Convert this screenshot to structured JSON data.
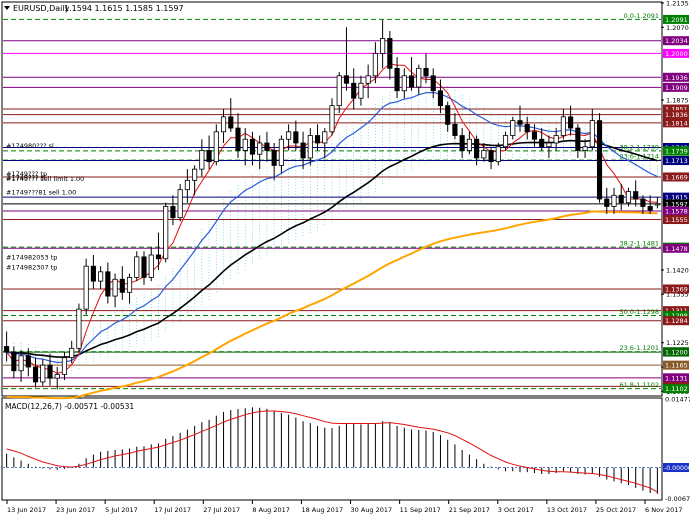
{
  "chart_data": [
    {
      "type": "candlestick",
      "symbol": "EURUSD",
      "timeframe": "Daily",
      "title": "EURUSD,Daily",
      "ohlc_header": [
        "1.1594",
        "1.1615",
        "1.1585",
        "1.1597"
      ],
      "ylim": [
        1.1085,
        1.2135
      ],
      "y_ticks": [
        "1.2135",
        "1.2070",
        "1.1875",
        "1.1420",
        "1.1355",
        "1.1225",
        "1.1160",
        "1.1095"
      ],
      "x_tick_labels": [
        "13 Jun 2017",
        "23 Jun 2017",
        "5 Jul 2017",
        "17 Jul 2017",
        "27 Jul 2017",
        "8 Aug 2017",
        "18 Aug 2017",
        "30 Aug 2017",
        "11 Sep 2017",
        "21 Sep 2017",
        "3 Oct 2017",
        "13 Oct 2017",
        "25 Oct 2017",
        "6 Nov 2017"
      ],
      "candles": [
        [
          1.1215,
          1.1255,
          1.1175,
          1.12
        ],
        [
          1.12,
          1.1215,
          1.113,
          1.115
        ],
        [
          1.115,
          1.1205,
          1.112,
          1.119
        ],
        [
          1.119,
          1.121,
          1.1135,
          1.116
        ],
        [
          1.116,
          1.1185,
          1.1105,
          1.112
        ],
        [
          1.112,
          1.118,
          1.111,
          1.1165
        ],
        [
          1.1165,
          1.1195,
          1.111,
          1.113
        ],
        [
          1.113,
          1.116,
          1.11,
          1.114
        ],
        [
          1.114,
          1.12,
          1.1125,
          1.1185
        ],
        [
          1.1185,
          1.123,
          1.117,
          1.121
        ],
        [
          1.121,
          1.133,
          1.12,
          1.1315
        ],
        [
          1.1315,
          1.145,
          1.13,
          1.143
        ],
        [
          1.143,
          1.146,
          1.137,
          1.139
        ],
        [
          1.139,
          1.143,
          1.137,
          1.1415
        ],
        [
          1.1415,
          1.144,
          1.133,
          1.135
        ],
        [
          1.135,
          1.141,
          1.132,
          1.1395
        ],
        [
          1.1395,
          1.143,
          1.134,
          1.136
        ],
        [
          1.136,
          1.141,
          1.133,
          1.14
        ],
        [
          1.14,
          1.147,
          1.139,
          1.1455
        ],
        [
          1.1455,
          1.147,
          1.138,
          1.14
        ],
        [
          1.14,
          1.148,
          1.139,
          1.146
        ],
        [
          1.146,
          1.152,
          1.142,
          1.145
        ],
        [
          1.145,
          1.16,
          1.144,
          1.159
        ],
        [
          1.159,
          1.162,
          1.154,
          1.156
        ],
        [
          1.156,
          1.165,
          1.155,
          1.1635
        ],
        [
          1.1635,
          1.169,
          1.16,
          1.166
        ],
        [
          1.166,
          1.17,
          1.162,
          1.169
        ],
        [
          1.169,
          1.177,
          1.167,
          1.174
        ],
        [
          1.174,
          1.178,
          1.169,
          1.171
        ],
        [
          1.171,
          1.181,
          1.17,
          1.179
        ],
        [
          1.179,
          1.185,
          1.176,
          1.183
        ],
        [
          1.183,
          1.188,
          1.179,
          1.18
        ],
        [
          1.18,
          1.184,
          1.172,
          1.174
        ],
        [
          1.174,
          1.18,
          1.17,
          1.177
        ],
        [
          1.177,
          1.179,
          1.17,
          1.173
        ],
        [
          1.173,
          1.178,
          1.169,
          1.176
        ],
        [
          1.176,
          1.179,
          1.171,
          1.174
        ],
        [
          1.174,
          1.176,
          1.166,
          1.17
        ],
        [
          1.17,
          1.178,
          1.168,
          1.177
        ],
        [
          1.177,
          1.181,
          1.174,
          1.179
        ],
        [
          1.179,
          1.182,
          1.174,
          1.176
        ],
        [
          1.176,
          1.179,
          1.169,
          1.172
        ],
        [
          1.172,
          1.18,
          1.17,
          1.178
        ],
        [
          1.178,
          1.181,
          1.174,
          1.176
        ],
        [
          1.176,
          1.18,
          1.172,
          1.179
        ],
        [
          1.179,
          1.188,
          1.178,
          1.186
        ],
        [
          1.186,
          1.195,
          1.184,
          1.194
        ],
        [
          1.194,
          1.207,
          1.19,
          1.192
        ],
        [
          1.192,
          1.196,
          1.185,
          1.188
        ],
        [
          1.188,
          1.194,
          1.186,
          1.192
        ],
        [
          1.192,
          1.197,
          1.188,
          1.194
        ],
        [
          1.194,
          1.203,
          1.192,
          1.2
        ],
        [
          1.2,
          1.209,
          1.196,
          1.204
        ],
        [
          1.204,
          1.206,
          1.193,
          1.196
        ],
        [
          1.196,
          1.199,
          1.188,
          1.19
        ],
        [
          1.19,
          1.196,
          1.188,
          1.194
        ],
        [
          1.194,
          1.199,
          1.19,
          1.191
        ],
        [
          1.191,
          1.197,
          1.189,
          1.196
        ],
        [
          1.196,
          1.2,
          1.192,
          1.194
        ],
        [
          1.194,
          1.196,
          1.188,
          1.19
        ],
        [
          1.19,
          1.193,
          1.184,
          1.186
        ],
        [
          1.186,
          1.187,
          1.179,
          1.181
        ],
        [
          1.181,
          1.184,
          1.177,
          1.178
        ],
        [
          1.178,
          1.18,
          1.172,
          1.174
        ],
        [
          1.174,
          1.179,
          1.173,
          1.177
        ],
        [
          1.177,
          1.178,
          1.17,
          1.172
        ],
        [
          1.172,
          1.176,
          1.171,
          1.174
        ],
        [
          1.174,
          1.175,
          1.169,
          1.171
        ],
        [
          1.171,
          1.176,
          1.17,
          1.175
        ],
        [
          1.175,
          1.179,
          1.174,
          1.178
        ],
        [
          1.178,
          1.183,
          1.177,
          1.182
        ],
        [
          1.182,
          1.186,
          1.179,
          1.181
        ],
        [
          1.181,
          1.183,
          1.177,
          1.179
        ],
        [
          1.179,
          1.181,
          1.175,
          1.177
        ],
        [
          1.177,
          1.18,
          1.174,
          1.175
        ],
        [
          1.175,
          1.178,
          1.172,
          1.176
        ],
        [
          1.176,
          1.18,
          1.174,
          1.178
        ],
        [
          1.178,
          1.185,
          1.177,
          1.183
        ],
        [
          1.183,
          1.186,
          1.178,
          1.18
        ],
        [
          1.18,
          1.181,
          1.172,
          1.174
        ],
        [
          1.174,
          1.177,
          1.172,
          1.175
        ],
        [
          1.175,
          1.185,
          1.174,
          1.182
        ],
        [
          1.182,
          1.184,
          1.16,
          1.161
        ],
        [
          1.161,
          1.164,
          1.157,
          1.159
        ],
        [
          1.159,
          1.164,
          1.157,
          1.162
        ],
        [
          1.162,
          1.165,
          1.158,
          1.16
        ],
        [
          1.16,
          1.164,
          1.159,
          1.163
        ],
        [
          1.163,
          1.166,
          1.159,
          1.161
        ],
        [
          1.161,
          1.162,
          1.157,
          1.159
        ],
        [
          1.159,
          1.162,
          1.157,
          1.158
        ],
        [
          1.1594,
          1.1615,
          1.1585,
          1.1597
        ]
      ],
      "series_meta": [
        {
          "color": "#000000"
        },
        {
          "color": "#ffa500"
        },
        {
          "color": "#2e5bd6"
        },
        {
          "color": "#e01010"
        }
      ],
      "horizontal_levels": [
        {
          "value": "1.2091",
          "label": "0.0-1.2091",
          "color": "#008000"
        },
        {
          "value": "1.2034",
          "label": "",
          "color": "#800080"
        },
        {
          "value": "1.2000",
          "label": "",
          "color": "#ff00ff"
        },
        {
          "value": "1.1936",
          "label": "",
          "color": "#800080"
        },
        {
          "value": "1.1909",
          "label": "",
          "color": "#800080"
        },
        {
          "value": "1.1851",
          "label": "",
          "color": "#8b1a1a"
        },
        {
          "value": "1.1836",
          "label": "",
          "color": "#8b1a1a"
        },
        {
          "value": "1.1814",
          "label": "",
          "color": "#8b1a1a"
        },
        {
          "value": "1.1748",
          "label": "",
          "color": "#000080"
        },
        {
          "value": "1.1739",
          "label": "38.2-1.1739",
          "color": "#008000"
        },
        {
          "value": "1.1714",
          "label": "23.6-1.1714",
          "color": "#008000"
        },
        {
          "value": "1.1713",
          "label": "",
          "color": "#000080"
        },
        {
          "value": "1.1669",
          "label": "",
          "color": "#8b1a1a"
        },
        {
          "value": "1.1615",
          "label": "",
          "color": "#000080"
        },
        {
          "value": "1.1597",
          "label": "",
          "color": "#000000"
        },
        {
          "value": "1.1578",
          "label": "",
          "color": "#800080"
        },
        {
          "value": "1.1555",
          "label": "",
          "color": "#8b1a1a"
        },
        {
          "value": "1.1481",
          "label": "38.2-1.1481",
          "color": "#008000"
        },
        {
          "value": "1.1478",
          "label": "",
          "color": "#800080"
        },
        {
          "value": "1.1369",
          "label": "",
          "color": "#8b1a1a"
        },
        {
          "value": "1.1311",
          "label": "",
          "color": "#8b1a1a"
        },
        {
          "value": "1.1298",
          "label": "50.0-1.1298",
          "color": "#008000"
        },
        {
          "value": "1.1284",
          "label": "",
          "color": "#8b1a1a"
        },
        {
          "value": "1.1201",
          "label": "23.6-1.1201",
          "color": "#008000"
        },
        {
          "value": "1.1200",
          "label": "",
          "color": "#006400"
        },
        {
          "value": "1.1165",
          "label": "",
          "color": "#8b5a2b"
        },
        {
          "value": "1.1131",
          "label": "",
          "color": "#800080"
        },
        {
          "value": "1.1108",
          "label": "",
          "color": "#8b1a1a"
        },
        {
          "value": "1.1102",
          "label": "61.8-1.1102",
          "color": "#008000"
        }
      ],
      "order_labels": [
        "#174980??? sl",
        "#1749??? tp",
        "#1749??? sl",
        "#1749???  sell limit 1.00",
        "#1749???81 sell 1.00",
        "#174982053 tp",
        "#174982307 tp"
      ]
    },
    {
      "type": "bar",
      "title": "MACD(12,26,7) -0.00571 -0.00531",
      "ylim": [
        -0.0068,
        0.0148
      ],
      "y_ticks": [
        "0.01477",
        "-0.00000",
        "-0.00671"
      ],
      "values": [
        0.003,
        0.0022,
        0.0015,
        0.0008,
        0.0002,
        -0.0002,
        -0.0004,
        -0.0005,
        -0.0003,
        0.0,
        0.0008,
        0.002,
        0.0028,
        0.0034,
        0.0036,
        0.0038,
        0.0039,
        0.0041,
        0.0045,
        0.0046,
        0.005,
        0.0052,
        0.0062,
        0.0068,
        0.0075,
        0.0082,
        0.009,
        0.0098,
        0.0103,
        0.0112,
        0.012,
        0.0124,
        0.0126,
        0.0128,
        0.013,
        0.0129,
        0.0127,
        0.0122,
        0.0118,
        0.0114,
        0.0108,
        0.01,
        0.0096,
        0.009,
        0.0086,
        0.0085,
        0.009,
        0.0095,
        0.0094,
        0.0093,
        0.0094,
        0.0096,
        0.01,
        0.0098,
        0.009,
        0.0086,
        0.0082,
        0.0081,
        0.008,
        0.0077,
        0.007,
        0.006,
        0.005,
        0.0038,
        0.0028,
        0.0018,
        0.0008,
        0.0002,
        -0.0004,
        -0.0008,
        -0.0008,
        -0.001,
        -0.001,
        -0.0012,
        -0.0014,
        -0.0014,
        -0.0012,
        -0.0008,
        -0.001,
        -0.0014,
        -0.0015,
        -0.0012,
        -0.002,
        -0.0026,
        -0.003,
        -0.0034,
        -0.0038,
        -0.0044,
        -0.005,
        -0.0055,
        -0.0057
      ],
      "signal": [
        0.004,
        0.0036,
        0.0031,
        0.0024,
        0.0018,
        0.0012,
        0.0008,
        0.0004,
        0.0002,
        0.0001,
        0.0003,
        0.0007,
        0.0012,
        0.0017,
        0.0021,
        0.0025,
        0.0028,
        0.0031,
        0.0035,
        0.0038,
        0.0041,
        0.0044,
        0.0049,
        0.0054,
        0.0059,
        0.0065,
        0.0071,
        0.0078,
        0.0084,
        0.0091,
        0.0098,
        0.0104,
        0.0109,
        0.0114,
        0.0118,
        0.0121,
        0.0122,
        0.0122,
        0.0121,
        0.0119,
        0.0116,
        0.0112,
        0.0108,
        0.0104,
        0.0099,
        0.0096,
        0.0095,
        0.0095,
        0.0095,
        0.0095,
        0.0095,
        0.0095,
        0.0096,
        0.0097,
        0.0095,
        0.0093,
        0.009,
        0.0087,
        0.0085,
        0.0083,
        0.0079,
        0.0075,
        0.0069,
        0.0061,
        0.0053,
        0.0044,
        0.0035,
        0.0026,
        0.0019,
        0.0012,
        0.0007,
        0.0003,
        0.0,
        -0.0003,
        -0.0006,
        -0.0008,
        -0.0009,
        -0.0009,
        -0.001,
        -0.0011,
        -0.0012,
        -0.0013,
        -0.0015,
        -0.0018,
        -0.0022,
        -0.0026,
        -0.003,
        -0.0034,
        -0.0039,
        -0.0044,
        -0.0053
      ]
    }
  ]
}
